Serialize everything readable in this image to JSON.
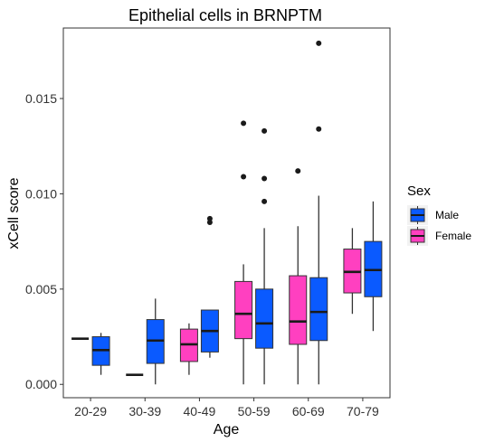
{
  "chart_data": {
    "type": "boxplot",
    "title": "Epithelial cells in BRNPTM",
    "xlabel": "Age",
    "ylabel": "xCell score",
    "categories": [
      "20-29",
      "30-39",
      "40-49",
      "50-59",
      "60-69",
      "70-79"
    ],
    "ylim": [
      -0.0007,
      0.0187
    ],
    "yticks": [
      0.0,
      0.005,
      0.01,
      0.015
    ],
    "ytick_labels": [
      "0.000",
      "0.005",
      "0.010",
      "0.015"
    ],
    "grid": false,
    "legend": {
      "title": "Sex",
      "placement": "right",
      "entries": [
        "Male",
        "Female"
      ]
    },
    "series": [
      {
        "name": "Female",
        "color": "#FF40C0",
        "boxes": [
          {
            "category": "20-29",
            "whisker_low": 0.0024,
            "q1": 0.0024,
            "median": 0.0024,
            "q3": 0.0024,
            "whisker_high": 0.0024,
            "outliers": []
          },
          {
            "category": "30-39",
            "whisker_low": 0.0005,
            "q1": 0.0005,
            "median": 0.0005,
            "q3": 0.0005,
            "whisker_high": 0.0005,
            "outliers": []
          },
          {
            "category": "40-49",
            "whisker_low": 0.0005,
            "q1": 0.0012,
            "median": 0.0021,
            "q3": 0.0029,
            "whisker_high": 0.0032,
            "outliers": []
          },
          {
            "category": "50-59",
            "whisker_low": 0.0,
            "q1": 0.0024,
            "median": 0.0037,
            "q3": 0.0054,
            "whisker_high": 0.0063,
            "outliers": [
              0.0109,
              0.0137
            ]
          },
          {
            "category": "60-69",
            "whisker_low": 0.0,
            "q1": 0.0021,
            "median": 0.0033,
            "q3": 0.0057,
            "whisker_high": 0.0083,
            "outliers": [
              0.0112
            ]
          },
          {
            "category": "70-79",
            "whisker_low": 0.0037,
            "q1": 0.0048,
            "median": 0.0059,
            "q3": 0.0071,
            "whisker_high": 0.0082,
            "outliers": []
          }
        ]
      },
      {
        "name": "Male",
        "color": "#0A5AFF",
        "boxes": [
          {
            "category": "20-29",
            "whisker_low": 0.0005,
            "q1": 0.001,
            "median": 0.0018,
            "q3": 0.0025,
            "whisker_high": 0.0027,
            "outliers": []
          },
          {
            "category": "30-39",
            "whisker_low": 0.0,
            "q1": 0.0011,
            "median": 0.0023,
            "q3": 0.0034,
            "whisker_high": 0.0045,
            "outliers": []
          },
          {
            "category": "40-49",
            "whisker_low": 0.0014,
            "q1": 0.0017,
            "median": 0.0028,
            "q3": 0.0039,
            "whisker_high": 0.0039,
            "outliers": [
              0.0085,
              0.0087
            ]
          },
          {
            "category": "50-59",
            "whisker_low": 0.0,
            "q1": 0.0019,
            "median": 0.0032,
            "q3": 0.005,
            "whisker_high": 0.0082,
            "outliers": [
              0.0096,
              0.0108,
              0.0133
            ]
          },
          {
            "category": "60-69",
            "whisker_low": 0.0,
            "q1": 0.0023,
            "median": 0.0038,
            "q3": 0.0056,
            "whisker_high": 0.0099,
            "outliers": [
              0.0134,
              0.0179
            ]
          },
          {
            "category": "70-79",
            "whisker_low": 0.0028,
            "q1": 0.0046,
            "median": 0.006,
            "q3": 0.0075,
            "whisker_high": 0.0096,
            "outliers": []
          }
        ]
      }
    ]
  }
}
